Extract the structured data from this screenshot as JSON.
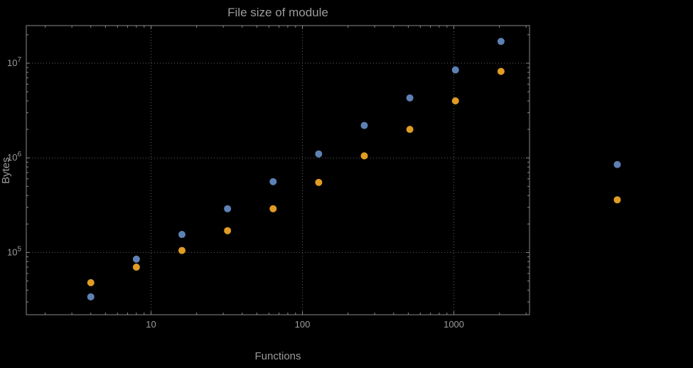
{
  "chart_data": {
    "type": "scatter",
    "title": "File size of module",
    "xlabel": "Functions",
    "ylabel": "Bytes",
    "x_scale": "log",
    "y_scale": "log",
    "xlim": [
      1.5,
      3160
    ],
    "ylim": [
      22000,
      25000000
    ],
    "grid": "dotted gridlines at decade ticks, frame on all four sides",
    "legend": "none",
    "x_ticks": [
      {
        "value": 10,
        "label": "10"
      },
      {
        "value": 100,
        "label": "100"
      },
      {
        "value": 1000,
        "label": "1000"
      }
    ],
    "y_ticks": [
      {
        "value": 100000,
        "base": "10",
        "exp": "5"
      },
      {
        "value": 1000000,
        "base": "10",
        "exp": "6"
      },
      {
        "value": 10000000,
        "base": "10",
        "exp": "7"
      }
    ],
    "series": [
      {
        "name": "blue",
        "color": "#5e81b5",
        "x": [
          4,
          8,
          16,
          32,
          64,
          128,
          256,
          512,
          1024,
          2048,
          12000
        ],
        "y": [
          34000,
          85000,
          155000,
          290000,
          560000,
          1100000,
          2200000,
          4300000,
          8500000,
          17000000,
          850000
        ]
      },
      {
        "name": "orange",
        "color": "#e19c24",
        "x": [
          4,
          8,
          16,
          32,
          64,
          128,
          256,
          512,
          1024,
          2048,
          12000
        ],
        "y": [
          48000,
          70000,
          105000,
          170000,
          290000,
          550000,
          1050000,
          2000000,
          4000000,
          8200000,
          360000
        ]
      }
    ]
  },
  "colors": {
    "background": "#000000",
    "frame": "#8a8a8a",
    "grid": "#5f5f5f",
    "text": "#9c9c9c"
  }
}
